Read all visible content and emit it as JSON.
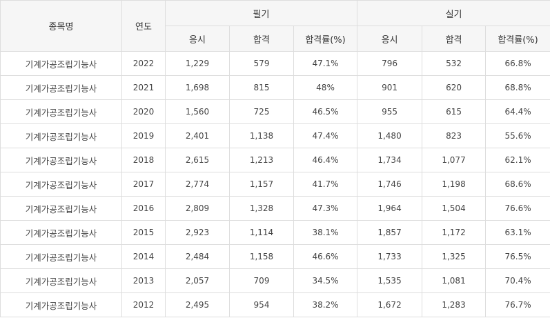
{
  "header": {
    "col_name": "종목명",
    "col_year": "연도",
    "group_written": "필기",
    "group_practical": "실기",
    "sub_applicants": "응시",
    "sub_passed": "합격",
    "sub_rate": "합격률(%)"
  },
  "rows": [
    {
      "name": "기계가공조립기능사",
      "year": "2022",
      "w_app": "1,229",
      "w_pass": "579",
      "w_rate": "47.1%",
      "p_app": "796",
      "p_pass": "532",
      "p_rate": "66.8%"
    },
    {
      "name": "기계가공조립기능사",
      "year": "2021",
      "w_app": "1,698",
      "w_pass": "815",
      "w_rate": "48%",
      "p_app": "901",
      "p_pass": "620",
      "p_rate": "68.8%"
    },
    {
      "name": "기계가공조립기능사",
      "year": "2020",
      "w_app": "1,560",
      "w_pass": "725",
      "w_rate": "46.5%",
      "p_app": "955",
      "p_pass": "615",
      "p_rate": "64.4%"
    },
    {
      "name": "기계가공조립기능사",
      "year": "2019",
      "w_app": "2,401",
      "w_pass": "1,138",
      "w_rate": "47.4%",
      "p_app": "1,480",
      "p_pass": "823",
      "p_rate": "55.6%"
    },
    {
      "name": "기계가공조립기능사",
      "year": "2018",
      "w_app": "2,615",
      "w_pass": "1,213",
      "w_rate": "46.4%",
      "p_app": "1,734",
      "p_pass": "1,077",
      "p_rate": "62.1%"
    },
    {
      "name": "기계가공조립기능사",
      "year": "2017",
      "w_app": "2,774",
      "w_pass": "1,157",
      "w_rate": "41.7%",
      "p_app": "1,746",
      "p_pass": "1,198",
      "p_rate": "68.6%"
    },
    {
      "name": "기계가공조립기능사",
      "year": "2016",
      "w_app": "2,809",
      "w_pass": "1,328",
      "w_rate": "47.3%",
      "p_app": "1,964",
      "p_pass": "1,504",
      "p_rate": "76.6%"
    },
    {
      "name": "기계가공조립기능사",
      "year": "2015",
      "w_app": "2,923",
      "w_pass": "1,114",
      "w_rate": "38.1%",
      "p_app": "1,857",
      "p_pass": "1,172",
      "p_rate": "63.1%"
    },
    {
      "name": "기계가공조립기능사",
      "year": "2014",
      "w_app": "2,484",
      "w_pass": "1,158",
      "w_rate": "46.6%",
      "p_app": "1,733",
      "p_pass": "1,325",
      "p_rate": "76.5%"
    },
    {
      "name": "기계가공조립기능사",
      "year": "2013",
      "w_app": "2,057",
      "w_pass": "709",
      "w_rate": "34.5%",
      "p_app": "1,535",
      "p_pass": "1,081",
      "p_rate": "70.4%"
    },
    {
      "name": "기계가공조립기능사",
      "year": "2012",
      "w_app": "2,495",
      "w_pass": "954",
      "w_rate": "38.2%",
      "p_app": "1,672",
      "p_pass": "1,283",
      "p_rate": "76.7%"
    }
  ]
}
